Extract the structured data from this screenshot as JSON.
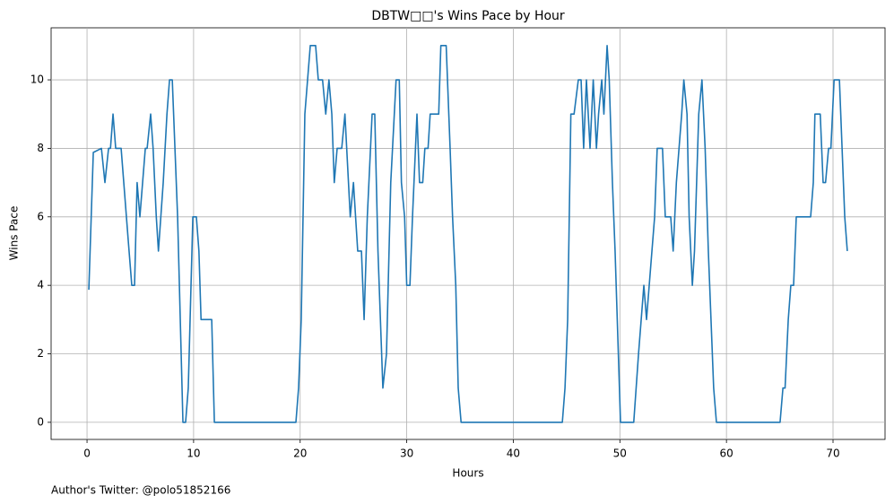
{
  "chart_data": {
    "type": "line",
    "title": "DBTW□□'s Wins Pace by Hour",
    "xlabel": "Hours",
    "ylabel": "Wins Pace",
    "annotation": "Author's Twitter: @polo51852166",
    "color": "#1f77b4",
    "grid": true,
    "xlim": [
      -3.37,
      74.88
    ],
    "ylim": [
      -0.5,
      11.52
    ],
    "xticks": [
      0,
      10,
      20,
      30,
      40,
      50,
      60,
      70
    ],
    "yticks": [
      0,
      2,
      4,
      6,
      8,
      10
    ],
    "x": [
      0.17,
      0.59,
      1.35,
      1.68,
      2.02,
      2.2,
      2.44,
      2.69,
      3.2,
      3.87,
      4.2,
      4.46,
      4.7,
      4.96,
      5.47,
      5.64,
      5.97,
      6.2,
      6.5,
      6.7,
      7.15,
      7.5,
      7.74,
      8,
      8.5,
      9,
      9.25,
      9.5,
      9.93,
      10.26,
      10.5,
      10.7,
      11.7,
      11.95,
      19.6,
      19.85,
      20.1,
      20.44,
      20.95,
      21.45,
      21.7,
      22.1,
      22.4,
      22.7,
      22.97,
      23.2,
      23.47,
      23.9,
      24.2,
      24.7,
      25,
      25.4,
      25.75,
      26,
      26.3,
      26.75,
      27,
      27.3,
      27.76,
      28.1,
      28.5,
      29,
      29.3,
      29.5,
      29.8,
      30,
      30.3,
      30.54,
      30.96,
      31.2,
      31.5,
      31.7,
      32,
      32.2,
      33,
      33.2,
      33.7,
      34.07,
      34.3,
      34.6,
      34.83,
      35.1,
      44.6,
      44.85,
      45.1,
      45.4,
      45.7,
      46.1,
      46.36,
      46.6,
      46.86,
      47.2,
      47.5,
      47.8,
      48,
      48.3,
      48.5,
      48.8,
      49,
      49.3,
      49.55,
      50.06,
      51.3,
      51.75,
      52.25,
      52.5,
      53.26,
      53.5,
      54,
      54.26,
      54.77,
      55,
      55.3,
      55.8,
      56,
      56.3,
      56.5,
      56.8,
      57,
      57.4,
      57.7,
      58,
      58.3,
      58.8,
      59.06,
      65.03,
      65.3,
      65.5,
      65.8,
      66.04,
      66.3,
      66.55,
      67.9,
      68.15,
      68.3,
      68.8,
      69.07,
      69.3,
      69.58,
      69.8,
      70.1,
      70.6,
      71.1,
      71.34
    ],
    "values": [
      3.87,
      7.88,
      8,
      7,
      8,
      8,
      9,
      8,
      8,
      5.3,
      4,
      4,
      7,
      6,
      8,
      8,
      9,
      8,
      6,
      5,
      7,
      9,
      10,
      10,
      6,
      0,
      0,
      1,
      6,
      6,
      5,
      3,
      3,
      0,
      0,
      1,
      3,
      9,
      11,
      11,
      10,
      10,
      9,
      10,
      9,
      7,
      8,
      8,
      9,
      6,
      7,
      5,
      5,
      3,
      6,
      9,
      9,
      5,
      1,
      2,
      7,
      10,
      10,
      7,
      6,
      4,
      4,
      6,
      9,
      7,
      7,
      8,
      8,
      9,
      9,
      11,
      11,
      8,
      6,
      4,
      1,
      0,
      0,
      1,
      3,
      9,
      9,
      10,
      10,
      8,
      10,
      8,
      10,
      8,
      9,
      10,
      9,
      11,
      10,
      7,
      5,
      0,
      0,
      2,
      4,
      3,
      6,
      8,
      8,
      6,
      6,
      5,
      7,
      9,
      10,
      9,
      6,
      4,
      5,
      9,
      10,
      8,
      5,
      1,
      0,
      0,
      1,
      1,
      3,
      4,
      4,
      6,
      6,
      7,
      9,
      9,
      7,
      7,
      8,
      8,
      10,
      10,
      6,
      5
    ]
  }
}
